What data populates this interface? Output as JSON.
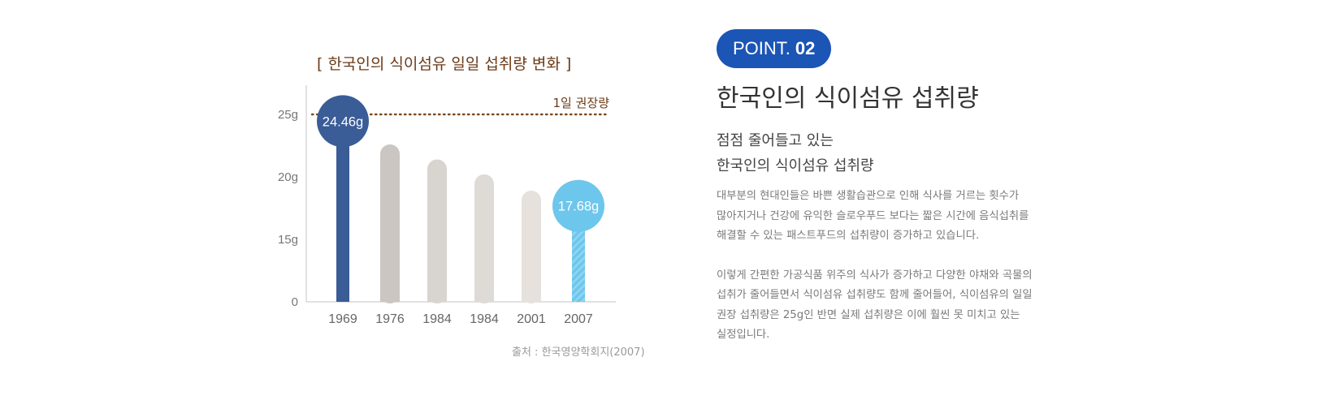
{
  "chart_data": {
    "type": "bar",
    "title": "[ 한국인의 식이섬유 일일 섭취량 변화 ]",
    "categories": [
      "1969",
      "1976",
      "1984",
      "1984",
      "2001",
      "2007"
    ],
    "values": [
      24.46,
      22.6,
      21.4,
      20.2,
      18.9,
      17.68
    ],
    "value_labels": [
      "24.46g",
      "",
      "",
      "",
      "",
      "17.68g"
    ],
    "y_ticks": [
      "0",
      "15g",
      "20g",
      "25g"
    ],
    "reference_line": {
      "value": 25,
      "label": "1일 권장량"
    },
    "source": "출처 : 한국영양학회지(2007)",
    "colors": {
      "highlight_start": "#3a5c97",
      "highlight_end": "#6dc6ec",
      "bars": [
        "#3a5c97",
        "#cbc6c1",
        "#d8d4d0",
        "#dedad5",
        "#e6e1dc",
        "#6dc6ec"
      ],
      "reference_line": "#7a4a1e"
    }
  },
  "point": {
    "badge_label": "POINT.",
    "badge_number": "02",
    "heading": "한국인의 식이섬유 섭취량",
    "sub_line1": "점점 줄어들고 있는",
    "sub_line2": "한국인의 식이섬유 섭취량",
    "paragraph1": "대부분의 현대인들은 바쁜 생활습관으로 인해 식사를 거르는 횟수가\n많아지거나 건강에 유익한 슬로우푸드 보다는 짧은 시간에 음식섭취를\n해결할 수 있는 패스트푸드의 섭취량이 증가하고 있습니다.",
    "paragraph2": "이렇게 간편한 가공식품 위주의 식사가 증가하고 다양한 야채와 곡물의\n섭취가 줄어들면서 식이섬유 섭취량도 함께 줄어들어, 식이섬유의 일일\n권장 섭취량은 25g인 반면 실제 섭취량은 이에 훨씬 못 미치고 있는\n실정입니다."
  }
}
